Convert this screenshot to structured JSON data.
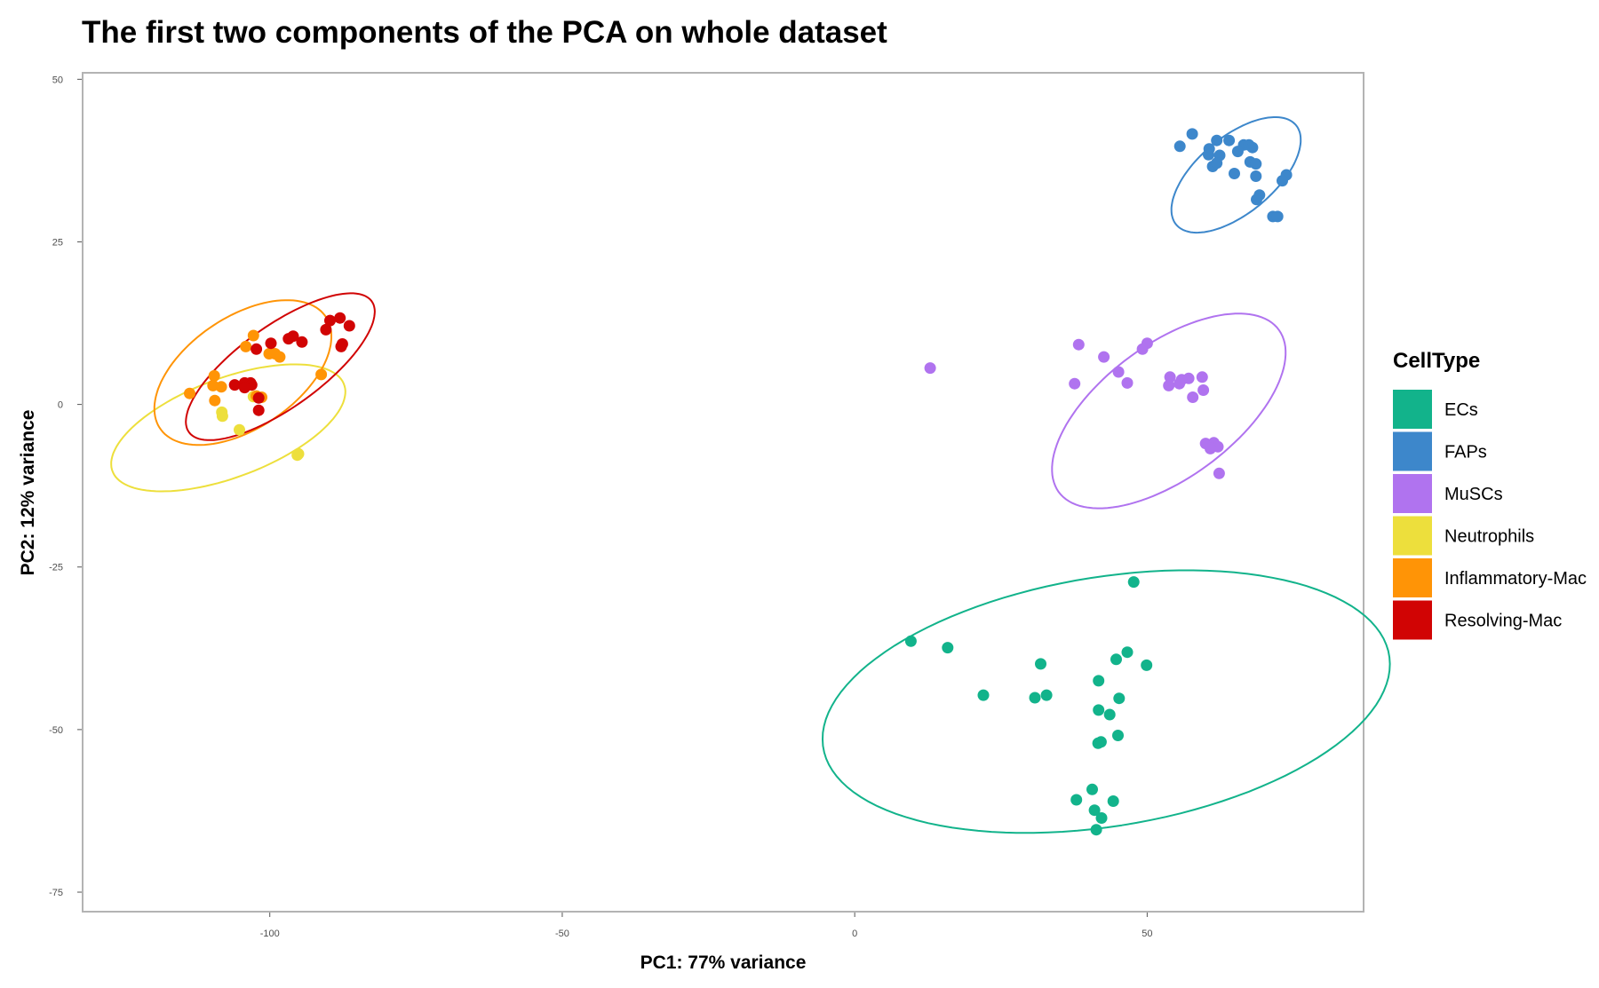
{
  "chart_data": {
    "type": "scatter",
    "title": "The first two components of the PCA on whole dataset",
    "xlabel": "PC1: 77% variance",
    "ylabel": "PC2: 12% variance",
    "xlim": [
      -132,
      87
    ],
    "ylim": [
      -78,
      51
    ],
    "x_ticks": [
      -100,
      -50,
      0,
      50
    ],
    "x_tick_labels": [
      "-100",
      "-50",
      "0",
      "50"
    ],
    "y_ticks": [
      50,
      25,
      0,
      -25,
      -50,
      -75
    ],
    "y_tick_labels": [
      "50",
      "25",
      "0",
      "-25",
      "-50",
      "-75"
    ],
    "grid": false,
    "legend_title": "CellType",
    "legend_position": "right",
    "series": [
      {
        "name": "ECs",
        "color": "#12b38b",
        "points": [
          [
            47.7,
            -27.3
          ],
          [
            9.6,
            -36.4
          ],
          [
            15.9,
            -37.4
          ],
          [
            46.6,
            -38.1
          ],
          [
            44.7,
            -39.2
          ],
          [
            49.9,
            -40.1
          ],
          [
            31.8,
            -39.9
          ],
          [
            41.7,
            -42.5
          ],
          [
            22.0,
            -44.7
          ],
          [
            30.8,
            -45.1
          ],
          [
            32.8,
            -44.7
          ],
          [
            45.2,
            -45.2
          ],
          [
            41.7,
            -47.0
          ],
          [
            43.6,
            -47.7
          ],
          [
            45.0,
            -50.9
          ],
          [
            42.1,
            -51.9
          ],
          [
            41.6,
            -52.1
          ],
          [
            40.6,
            -59.2
          ],
          [
            37.9,
            -60.8
          ],
          [
            44.2,
            -61.0
          ],
          [
            41.0,
            -62.4
          ],
          [
            42.2,
            -63.6
          ],
          [
            41.3,
            -65.4
          ]
        ],
        "ellipse": {
          "cx": 43.0,
          "cy": -45.7,
          "rx": 19.2,
          "ry": 48.9,
          "angle_deg": -82
        }
      },
      {
        "name": "FAPs",
        "color": "#3d87cb",
        "points": [
          [
            57.7,
            41.6
          ],
          [
            55.6,
            39.7
          ],
          [
            61.9,
            40.6
          ],
          [
            64.0,
            40.6
          ],
          [
            66.5,
            39.9
          ],
          [
            67.4,
            39.9
          ],
          [
            68.0,
            39.5
          ],
          [
            60.6,
            39.3
          ],
          [
            60.5,
            38.4
          ],
          [
            62.4,
            38.3
          ],
          [
            65.5,
            38.9
          ],
          [
            67.6,
            37.3
          ],
          [
            68.6,
            37.0
          ],
          [
            61.2,
            36.6
          ],
          [
            61.9,
            37.1
          ],
          [
            64.9,
            35.5
          ],
          [
            68.6,
            35.1
          ],
          [
            73.8,
            35.3
          ],
          [
            73.1,
            34.4
          ],
          [
            69.2,
            32.2
          ],
          [
            68.7,
            31.5
          ],
          [
            71.5,
            28.9
          ],
          [
            72.3,
            28.9
          ]
        ],
        "ellipse": {
          "cx": 65.2,
          "cy": 35.3,
          "rx": 12.8,
          "ry": 6.1,
          "angle_deg": 35
        }
      },
      {
        "name": "MuSCs",
        "color": "#b073ef",
        "points": [
          [
            12.9,
            5.6
          ],
          [
            38.3,
            9.2
          ],
          [
            50.0,
            9.4
          ],
          [
            49.2,
            8.5
          ],
          [
            42.6,
            7.3
          ],
          [
            45.1,
            5.0
          ],
          [
            53.9,
            4.2
          ],
          [
            57.1,
            4.0
          ],
          [
            59.4,
            4.2
          ],
          [
            55.9,
            3.8
          ],
          [
            55.5,
            3.2
          ],
          [
            53.7,
            2.9
          ],
          [
            37.6,
            3.2
          ],
          [
            46.6,
            3.3
          ],
          [
            59.6,
            2.2
          ],
          [
            57.8,
            1.1
          ],
          [
            60.0,
            -6.0
          ],
          [
            61.4,
            -5.9
          ],
          [
            62.1,
            -6.5
          ],
          [
            60.8,
            -6.8
          ],
          [
            62.3,
            -10.6
          ]
        ],
        "ellipse": {
          "cx": 53.7,
          "cy": -1.0,
          "rx": 22.6,
          "ry": 10.6,
          "angle_deg": 32
        }
      },
      {
        "name": "Neutrophils",
        "color": "#eddf3c",
        "points": [
          [
            -108.2,
            -1.2
          ],
          [
            -108.1,
            -1.8
          ],
          [
            -105.2,
            -3.9
          ],
          [
            -95.1,
            -7.6
          ],
          [
            -95.3,
            -7.8
          ],
          [
            -102.8,
            1.2
          ]
        ],
        "ellipse": {
          "cx": -107.1,
          "cy": -3.6,
          "rx": 20.9,
          "ry": 7.7,
          "angle_deg": 18
        }
      },
      {
        "name": "Inflammatory-Mac",
        "color": "#ff9406",
        "points": [
          [
            -102.8,
            10.6
          ],
          [
            -104.1,
            8.9
          ],
          [
            -100.1,
            7.8
          ],
          [
            -99.1,
            7.8
          ],
          [
            -98.3,
            7.3
          ],
          [
            -109.5,
            4.4
          ],
          [
            -91.2,
            4.6
          ],
          [
            -109.7,
            2.9
          ],
          [
            -108.3,
            2.7
          ],
          [
            -113.7,
            1.7
          ],
          [
            -109.4,
            0.6
          ],
          [
            -102.3,
            1.3
          ],
          [
            -101.4,
            1.1
          ]
        ],
        "ellipse": {
          "cx": -104.6,
          "cy": 4.9,
          "rx": 16.6,
          "ry": 8.8,
          "angle_deg": 29
        }
      },
      {
        "name": "Resolving-Mac",
        "color": "#d10404",
        "points": [
          [
            -88.0,
            13.3
          ],
          [
            -89.7,
            12.9
          ],
          [
            -86.4,
            12.1
          ],
          [
            -90.4,
            11.5
          ],
          [
            -96.0,
            10.5
          ],
          [
            -96.8,
            10.1
          ],
          [
            -94.5,
            9.6
          ],
          [
            -99.8,
            9.4
          ],
          [
            -87.6,
            9.3
          ],
          [
            -87.8,
            8.9
          ],
          [
            -102.3,
            8.5
          ],
          [
            -106.0,
            3.0
          ],
          [
            -104.3,
            3.3
          ],
          [
            -103.3,
            3.3
          ],
          [
            -103.1,
            3.0
          ],
          [
            -104.3,
            2.6
          ],
          [
            -101.9,
            1.0
          ],
          [
            -101.9,
            -0.9
          ]
        ],
        "ellipse": {
          "cx": -98.2,
          "cy": 5.8,
          "rx": 18.6,
          "ry": 6.5,
          "angle_deg": 32
        }
      }
    ]
  }
}
